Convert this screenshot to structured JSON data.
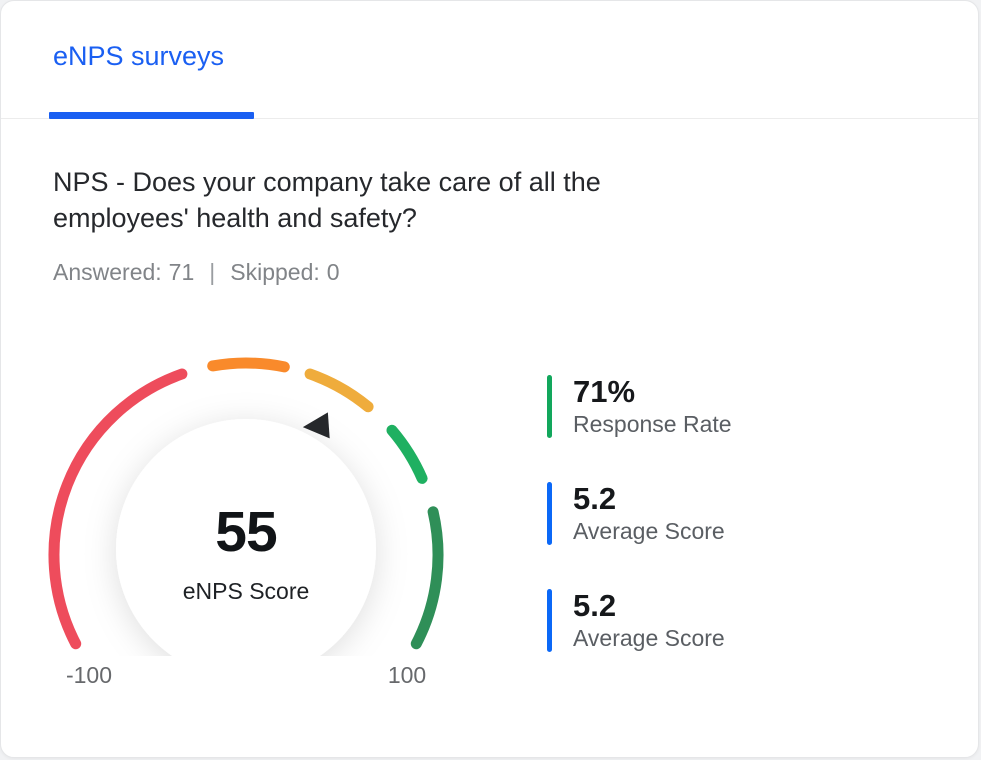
{
  "accent_color": "#1A5FF2",
  "tabs": [
    {
      "label": "eNPS surveys",
      "active": true
    }
  ],
  "question": {
    "title": "NPS - Does your company take care of all the employees' health and safety?",
    "answered_label": "Answered:",
    "answered_value": "71",
    "separator": "|",
    "skipped_label": "Skipped:",
    "skipped_value": "0"
  },
  "chart_data": {
    "type": "gauge",
    "title": "eNPS Score",
    "value": 55,
    "min": -100,
    "max": 100,
    "min_label": "-100",
    "max_label": "100",
    "start_angle": -119,
    "end_angle": 119,
    "pointer": {
      "angle": 28.8,
      "color": "#26282B"
    },
    "segments": [
      {
        "name": "red",
        "color": "#EE4C5C",
        "from": -117.5,
        "to": -19.5
      },
      {
        "name": "orange",
        "color": "#F98A2B",
        "from": -10,
        "to": 11.5
      },
      {
        "name": "amber",
        "color": "#EFAC3C",
        "from": 19.5,
        "to": 39.5
      },
      {
        "name": "light-green",
        "color": "#1FB061",
        "from": 49.5,
        "to": 66.5
      },
      {
        "name": "dark-green",
        "color": "#2F8F58",
        "from": 77,
        "to": 117.5
      }
    ]
  },
  "stats": [
    {
      "value": "71%",
      "label": "Response Rate",
      "accent": "#12A75C"
    },
    {
      "value": "5.2",
      "label": "Average Score",
      "accent": "#0B68F7"
    },
    {
      "value": "5.2",
      "label": "Average Score",
      "accent": "#0B68F7"
    }
  ]
}
